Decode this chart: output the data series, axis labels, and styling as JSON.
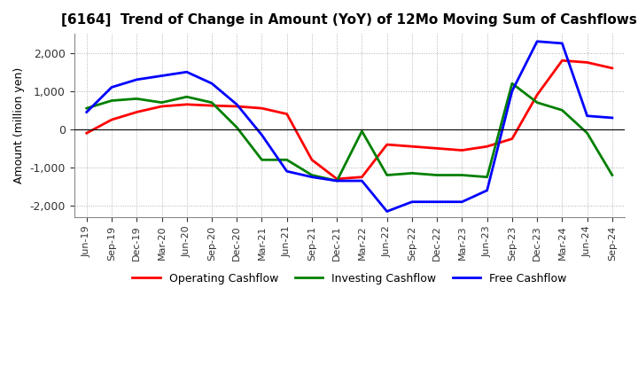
{
  "title": "[6164]  Trend of Change in Amount (YoY) of 12Mo Moving Sum of Cashflows",
  "ylabel": "Amount (million yen)",
  "ylim": [
    -2300,
    2500
  ],
  "yticks": [
    -2000,
    -1000,
    0,
    1000,
    2000
  ],
  "x_labels": [
    "Jun-19",
    "Sep-19",
    "Dec-19",
    "Mar-20",
    "Jun-20",
    "Sep-20",
    "Dec-20",
    "Mar-21",
    "Jun-21",
    "Sep-21",
    "Dec-21",
    "Mar-22",
    "Jun-22",
    "Sep-22",
    "Dec-22",
    "Mar-23",
    "Jun-23",
    "Sep-23",
    "Dec-23",
    "Mar-24",
    "Jun-24",
    "Sep-24"
  ],
  "operating": [
    -100,
    250,
    450,
    600,
    650,
    620,
    600,
    550,
    400,
    -800,
    -1300,
    -1250,
    -400,
    -450,
    -500,
    -550,
    -450,
    -250,
    900,
    1800,
    1750,
    1600
  ],
  "investing": [
    550,
    750,
    800,
    700,
    850,
    700,
    50,
    -800,
    -800,
    -1200,
    -1350,
    -50,
    -1200,
    -1150,
    -1200,
    -1200,
    -1250,
    1200,
    700,
    500,
    -100,
    -1200
  ],
  "free": [
    450,
    1100,
    1300,
    1400,
    1500,
    1200,
    650,
    -150,
    -1100,
    -1250,
    -1350,
    -1350,
    -2150,
    -1900,
    -1900,
    -1900,
    -1600,
    1000,
    2300,
    2250,
    350,
    300
  ],
  "operating_color": "#ff0000",
  "investing_color": "#008000",
  "free_color": "#0000ff",
  "legend_labels": [
    "Operating Cashflow",
    "Investing Cashflow",
    "Free Cashflow"
  ],
  "background_color": "#ffffff",
  "grid_color": "#b0b0b0"
}
